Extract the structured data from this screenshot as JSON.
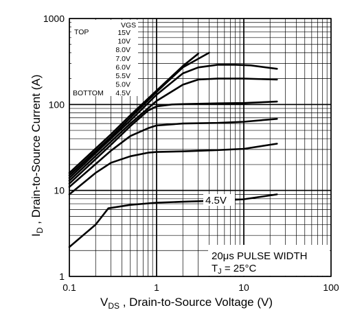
{
  "chart_data": {
    "type": "line",
    "title": "",
    "xlabel": {
      "main": "V",
      "sub": "DS",
      "rest": " , Drain-to-Source Voltage (V)"
    },
    "ylabel": {
      "main": "I",
      "sub": "D",
      "rest": " ,  Drain-to-Source Current (A)"
    },
    "x_scale": "log",
    "y_scale": "log",
    "xlim": [
      0.1,
      100
    ],
    "ylim": [
      1,
      1000
    ],
    "x_ticks": [
      {
        "value": 0.1,
        "label": "0.1"
      },
      {
        "value": 1,
        "label": "1"
      },
      {
        "value": 10,
        "label": "10"
      },
      {
        "value": 100,
        "label": "100"
      }
    ],
    "y_ticks": [
      {
        "value": 1,
        "label": "1"
      },
      {
        "value": 10,
        "label": "10"
      },
      {
        "value": 100,
        "label": "100"
      },
      {
        "value": 1000,
        "label": "1000"
      }
    ],
    "grid": true,
    "legend": {
      "placement": "top-left",
      "header": "VGS",
      "top_label": "TOP",
      "bottom_label": "BOTTOM",
      "entries": [
        "15V",
        "10V",
        "8.0V",
        "7.0V",
        "6.0V",
        "5.5V",
        "5.0V",
        "4.5V"
      ]
    },
    "annotations": {
      "curve_label": "4.5V",
      "pulse_width": "20μs PULSE WIDTH",
      "temperature": {
        "main": "T",
        "sub": "J",
        "rest": " = 25°C"
      }
    },
    "series": [
      {
        "x": [
          0.1,
          0.3,
          0.5,
          1,
          2,
          3
        ],
        "y": [
          16,
          45,
          75,
          145,
          280,
          390
        ]
      },
      {
        "x": [
          0.1,
          0.3,
          0.5,
          1,
          2,
          4
        ],
        "y": [
          15,
          42,
          70,
          140,
          270,
          400
        ]
      },
      {
        "x": [
          0.1,
          0.3,
          0.5,
          1,
          2,
          3,
          5,
          8,
          12,
          24
        ],
        "y": [
          14,
          40,
          65,
          130,
          230,
          270,
          290,
          290,
          285,
          260
        ]
      },
      {
        "x": [
          0.1,
          0.3,
          0.5,
          1,
          2,
          3,
          5,
          10,
          24
        ],
        "y": [
          13,
          37,
          60,
          110,
          170,
          195,
          200,
          200,
          195
        ]
      },
      {
        "x": [
          0.1,
          0.3,
          0.5,
          0.8,
          1,
          1.5,
          2,
          5,
          10,
          24
        ],
        "y": [
          12,
          34,
          56,
          85,
          95,
          100,
          101,
          103,
          104,
          108
        ]
      },
      {
        "x": [
          0.1,
          0.3,
          0.5,
          0.8,
          1,
          2,
          5,
          10,
          24
        ],
        "y": [
          11,
          29,
          43,
          53,
          57,
          60,
          61,
          63,
          68
        ]
      },
      {
        "x": [
          0.1,
          0.2,
          0.3,
          0.5,
          0.8,
          1,
          2,
          5,
          10,
          24
        ],
        "y": [
          9,
          16,
          21,
          25,
          27.5,
          28,
          28.5,
          29.5,
          30.5,
          35
        ]
      },
      {
        "x": [
          0.1,
          0.2,
          0.28,
          0.5,
          1,
          2,
          5,
          10,
          24
        ],
        "y": [
          2.2,
          4.0,
          6.2,
          6.8,
          7.2,
          7.4,
          7.6,
          7.9,
          9.0
        ]
      }
    ]
  }
}
